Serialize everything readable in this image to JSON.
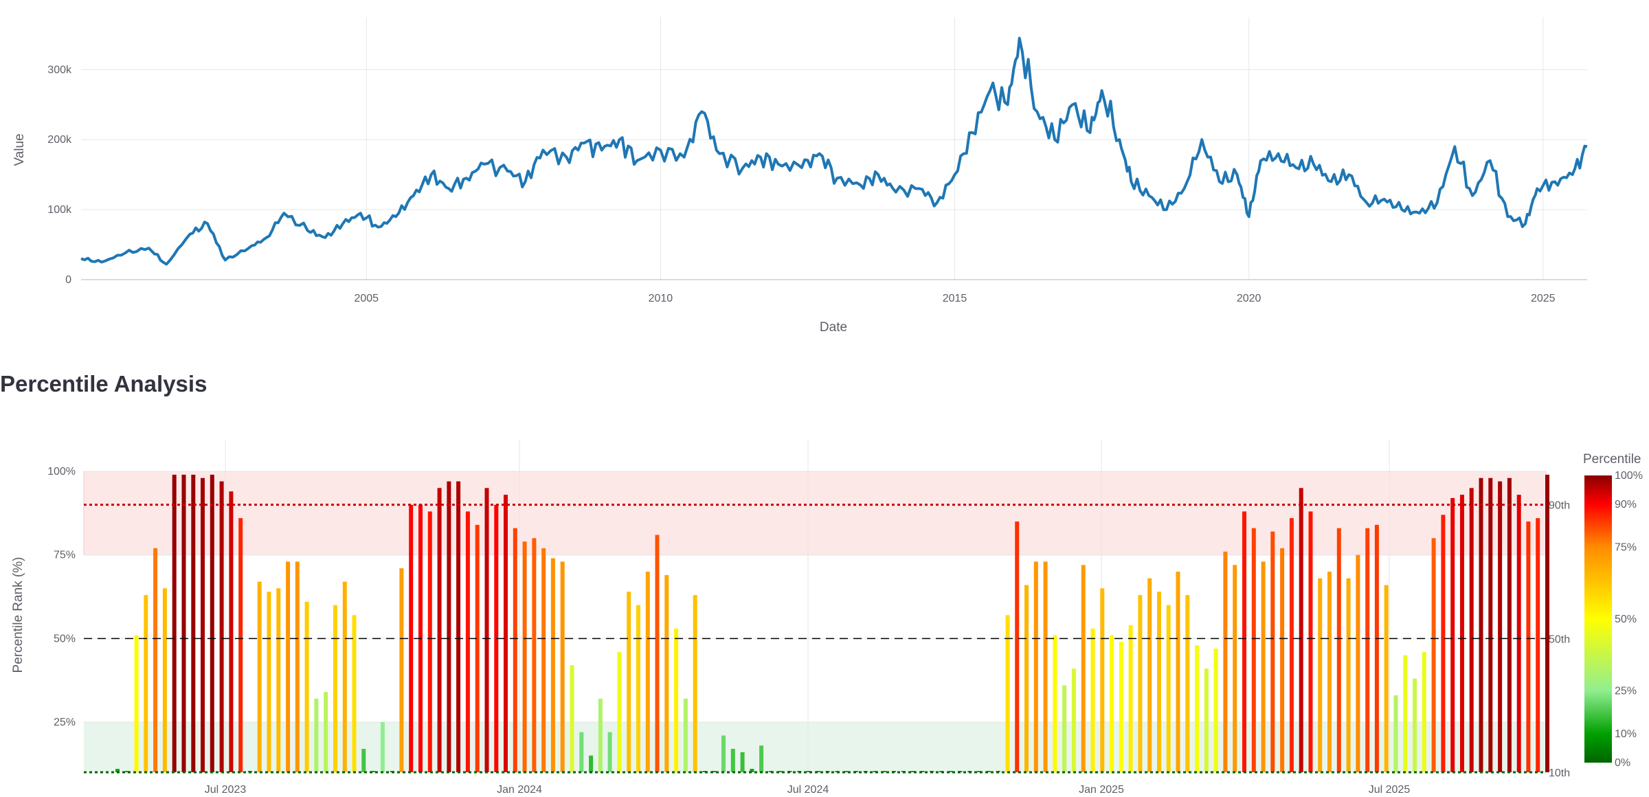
{
  "section_heading": "Percentile Analysis",
  "colors": {
    "line": "#1f77b4",
    "grid": "#e6e6e6",
    "threshold_90": "#cc0000",
    "threshold_50": "#000000",
    "threshold_10": "#006400",
    "high_band": "#fde8e8",
    "low_band": "#e8f5ec"
  },
  "chart_data": [
    {
      "type": "line",
      "xlabel": "Date",
      "ylabel": "Value",
      "x_ticks": [
        "2005",
        "2010",
        "2015",
        "2020",
        "2025"
      ],
      "y_ticks": [
        "0",
        "100k",
        "200k",
        "300k"
      ],
      "ylim": [
        0,
        370000
      ],
      "xlim": [
        2000.15,
        2025.75
      ],
      "grid": true,
      "series": [
        {
          "x": [
            2000.15,
            2000.5,
            2000.9,
            2001.3,
            2001.6,
            2002.0,
            2002.3,
            2002.6,
            2003.0,
            2003.3,
            2003.6,
            2004.0,
            2004.3,
            2004.6,
            2004.9,
            2005.2,
            2005.5,
            2005.8,
            2006.1,
            2006.4,
            2006.7,
            2007.0,
            2007.4,
            2007.7,
            2008.0,
            2008.4,
            2008.7,
            2009.0,
            2009.3,
            2009.6,
            2010.0,
            2010.4,
            2010.7,
            2011.0,
            2011.4,
            2011.7,
            2012.0,
            2012.4,
            2012.7,
            2013.0,
            2013.4,
            2013.7,
            2014.0,
            2014.4,
            2014.7,
            2015.0,
            2015.3,
            2015.6,
            2015.9,
            2016.1,
            2016.4,
            2016.7,
            2017.0,
            2017.3,
            2017.5,
            2017.8,
            2018.0,
            2018.3,
            2018.6,
            2018.9,
            2019.2,
            2019.5,
            2019.8,
            2020.0,
            2020.2,
            2020.5,
            2020.8,
            2021.1,
            2021.4,
            2021.7,
            2022.0,
            2022.3,
            2022.6,
            2022.9,
            2023.2,
            2023.5,
            2023.8,
            2024.1,
            2024.4,
            2024.7,
            2024.9,
            2025.2,
            2025.5,
            2025.75
          ],
          "values": [
            30000,
            25000,
            38000,
            45000,
            22000,
            65000,
            80000,
            28000,
            45000,
            60000,
            95000,
            70000,
            60000,
            80000,
            95000,
            75000,
            90000,
            120000,
            150000,
            130000,
            145000,
            165000,
            155000,
            140000,
            185000,
            175000,
            195000,
            185000,
            200000,
            170000,
            185000,
            175000,
            240000,
            180000,
            160000,
            175000,
            165000,
            160000,
            180000,
            145000,
            135000,
            150000,
            125000,
            130000,
            110000,
            150000,
            210000,
            270000,
            250000,
            345000,
            240000,
            200000,
            250000,
            210000,
            270000,
            200000,
            140000,
            120000,
            100000,
            130000,
            200000,
            140000,
            150000,
            90000,
            170000,
            180000,
            160000,
            165000,
            140000,
            150000,
            110000,
            115000,
            100000,
            95000,
            110000,
            190000,
            120000,
            170000,
            90000,
            80000,
            130000,
            140000,
            150000,
            190000
          ]
        }
      ]
    },
    {
      "type": "bar",
      "ylabel": "Percentile Rank (%)",
      "x_ticks": [
        "Jul 2023",
        "Jan 2024",
        "Jul 2024",
        "Jan 2025",
        "Jul 2025"
      ],
      "y_ticks": [
        "25%",
        "50%",
        "75%",
        "100%"
      ],
      "right_labels": [
        "90th",
        "50th",
        "10th"
      ],
      "ylim": [
        10,
        100
      ],
      "thresholds": [
        90,
        50,
        10
      ],
      "colorbar": {
        "title": "Percentile",
        "ticks": [
          "100%",
          "90%",
          "75%",
          "50%",
          "25%",
          "10%",
          "0%"
        ]
      },
      "values": [
        11,
        10,
        51,
        63,
        77,
        65,
        99,
        99,
        99,
        98,
        99,
        97,
        94,
        86,
        10,
        67,
        64,
        65,
        73,
        73,
        61,
        32,
        34,
        60,
        67,
        57,
        17,
        10,
        25,
        10,
        71,
        90,
        90,
        88,
        95,
        97,
        97,
        88,
        84,
        95,
        90,
        93,
        83,
        79,
        80,
        77,
        74,
        73,
        42,
        22,
        15,
        32,
        22,
        46,
        64,
        60,
        70,
        81,
        69,
        53,
        32,
        63,
        10,
        10,
        21,
        17,
        16,
        11,
        18,
        10,
        10,
        10,
        10,
        10,
        10,
        10,
        10,
        10,
        10,
        10,
        10,
        10,
        10,
        10,
        10,
        10,
        10,
        10,
        10,
        10,
        10,
        10,
        10,
        10,
        57,
        85,
        66,
        73,
        73,
        51,
        36,
        41,
        72,
        53,
        65,
        51,
        49,
        54,
        63,
        68,
        64,
        60,
        70,
        63,
        48,
        41,
        47,
        76,
        72,
        88,
        83,
        73,
        82,
        77,
        86,
        95,
        88,
        68,
        70,
        83,
        68,
        75,
        83,
        84,
        66,
        33,
        45,
        38,
        46,
        80,
        87,
        92,
        93,
        95,
        98,
        98,
        97,
        98,
        93,
        85,
        86,
        99
      ]
    }
  ]
}
